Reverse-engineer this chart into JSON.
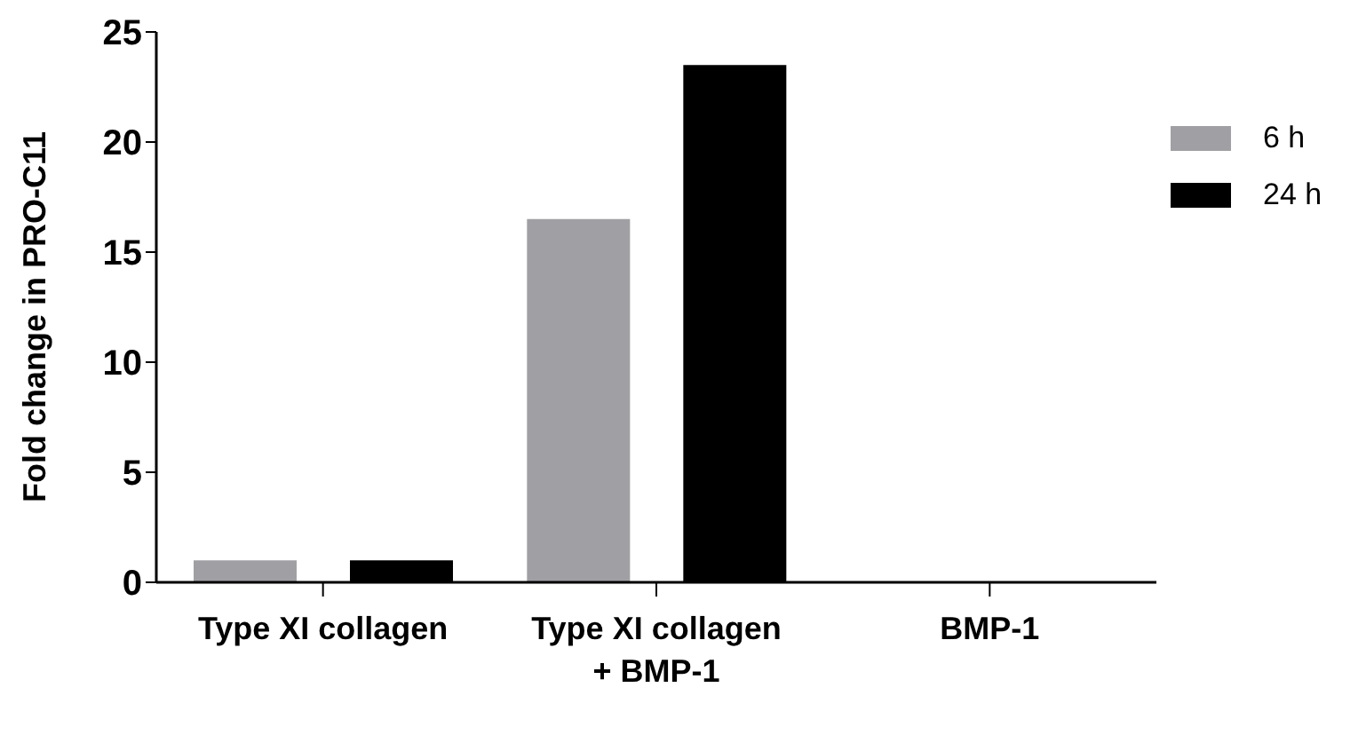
{
  "chart_data": {
    "type": "bar",
    "ylabel": "Fold change in PRO-C11",
    "categories": [
      "Type XI collagen",
      "Type XI collagen + BMP-1",
      "BMP-1"
    ],
    "series": [
      {
        "name": "6 h",
        "color": "#a0a0a4",
        "values": [
          1,
          16.5,
          0
        ]
      },
      {
        "name": "24 h",
        "color": "#000000",
        "values": [
          1,
          23.5,
          0
        ]
      }
    ],
    "ylim": [
      0,
      25
    ],
    "yticks": [
      0,
      5,
      10,
      15,
      20,
      25
    ],
    "grid": false,
    "legend": "top right"
  }
}
